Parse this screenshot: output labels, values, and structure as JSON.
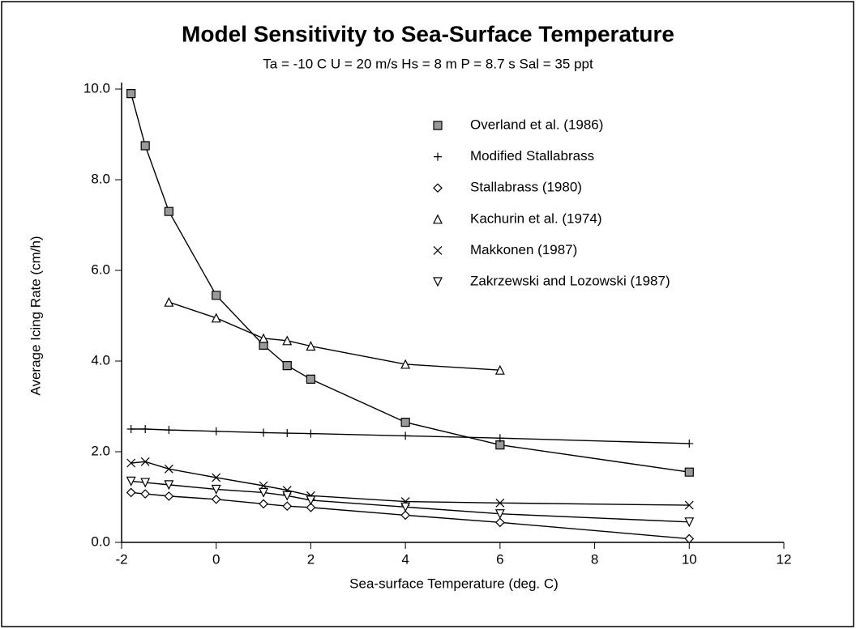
{
  "chart_data": {
    "type": "line",
    "title": "Model Sensitivity to Sea-Surface Temperature",
    "subtitle": "Ta = -10 C   U = 20 m/s   Hs = 8 m   P = 8.7 s   Sal = 35 ppt",
    "x_label": "Sea-surface Temperature  (deg. C)",
    "y_label": "Average Icing Rate  (cm/h)",
    "xlim": [
      -2,
      12
    ],
    "xticks": [
      -2,
      0,
      2,
      4,
      6,
      8,
      10,
      12
    ],
    "ylim": [
      0,
      10
    ],
    "yticks": [
      {
        "value": 0,
        "label": "0.0"
      },
      {
        "value": 2,
        "label": "2.0"
      },
      {
        "value": 4,
        "label": "4.0"
      },
      {
        "value": 6,
        "label": "6.0"
      },
      {
        "value": 8,
        "label": "8.0"
      },
      {
        "value": 10,
        "label": "10.0"
      }
    ],
    "legend": "upper right",
    "series": [
      {
        "name": "Overland et al. (1986)",
        "color": "#000000",
        "marker": "square",
        "x": [
          -1.8,
          -1.5,
          -1,
          0,
          1,
          1.5,
          2,
          4,
          6,
          10
        ],
        "values": [
          9.9,
          8.75,
          7.3,
          5.45,
          4.35,
          3.9,
          3.6,
          2.65,
          2.15,
          1.55
        ]
      },
      {
        "name": "Modified Stallabrass",
        "color": "#000000",
        "marker": "plus",
        "x": [
          -1.8,
          -1.5,
          -1,
          0,
          1,
          1.5,
          2,
          4,
          6,
          10
        ],
        "values": [
          2.5,
          2.5,
          2.48,
          2.45,
          2.42,
          2.41,
          2.4,
          2.35,
          2.3,
          2.18
        ]
      },
      {
        "name": "Stallabrass (1980)",
        "color": "#000000",
        "marker": "diamond",
        "x": [
          -1.8,
          -1.5,
          -1,
          0,
          1,
          1.5,
          2,
          4,
          6,
          10
        ],
        "values": [
          1.1,
          1.07,
          1.02,
          0.95,
          0.85,
          0.8,
          0.77,
          0.6,
          0.44,
          0.08
        ]
      },
      {
        "name": "Kachurin et al. (1974)",
        "color": "#000000",
        "marker": "triangle",
        "x": [
          -1,
          0,
          1,
          1.5,
          2,
          4,
          6
        ],
        "values": [
          5.3,
          4.95,
          4.5,
          4.45,
          4.33,
          3.93,
          3.8
        ]
      },
      {
        "name": "Makkonen (1987)",
        "color": "#000000",
        "marker": "x",
        "x": [
          -1.8,
          -1.5,
          -1,
          0,
          1,
          1.5,
          2,
          4,
          6,
          10
        ],
        "values": [
          1.75,
          1.78,
          1.62,
          1.43,
          1.25,
          1.15,
          1.03,
          0.9,
          0.87,
          0.82
        ]
      },
      {
        "name": "Zakrzewski and Lozowski (1987)",
        "color": "#000000",
        "marker": "triangle-down",
        "x": [
          -1.8,
          -1.5,
          -1,
          0,
          1,
          1.5,
          2,
          4,
          6,
          10
        ],
        "values": [
          1.35,
          1.32,
          1.27,
          1.17,
          1.1,
          1.03,
          0.93,
          0.78,
          0.63,
          0.45
        ]
      }
    ]
  }
}
